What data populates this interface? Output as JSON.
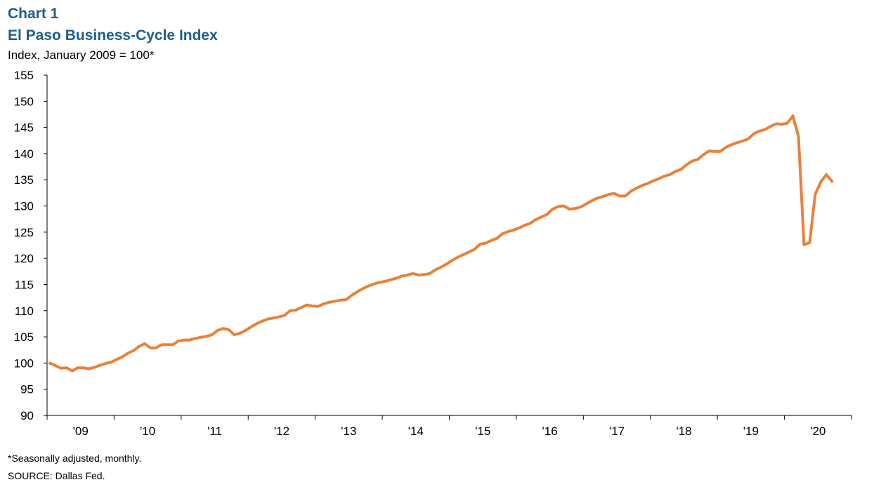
{
  "header": {
    "chart_number": "Chart 1",
    "title": "El Paso Business-Cycle Index",
    "subtitle": "Index, January 2009 = 100*"
  },
  "footer": {
    "note": "*Seasonally adjusted, monthly.",
    "source": "SOURCE:  Dallas Fed."
  },
  "colors": {
    "line": "#e8823a",
    "axis": "#000000"
  },
  "chart_data": {
    "type": "line",
    "title": "El Paso Business-Cycle Index",
    "xlabel": "",
    "ylabel": "Index, January 2009 = 100*",
    "ylim": [
      90,
      155
    ],
    "yticks": [
      90,
      95,
      100,
      105,
      110,
      115,
      120,
      125,
      130,
      135,
      140,
      145,
      150,
      155
    ],
    "xticks": [
      "'09",
      "'10",
      "'11",
      "'12",
      "'13",
      "'14",
      "'15",
      "'16",
      "'17",
      "'18",
      "'19",
      "'20"
    ],
    "grid": false,
    "legend": "none",
    "x_start": "2009-01",
    "x_end": "2020-09",
    "series": [
      {
        "values": [
          100.0,
          99.5,
          99.0,
          99.1,
          98.5,
          99.1,
          99.1,
          98.9,
          99.2,
          99.6,
          99.9,
          100.2,
          100.7,
          101.2,
          101.9,
          102.4,
          103.2,
          103.7,
          102.9,
          102.9,
          103.5,
          103.5,
          103.5,
          104.2,
          104.4,
          104.4,
          104.7,
          104.9,
          105.1,
          105.4,
          106.2,
          106.6,
          106.4,
          105.4,
          105.7,
          106.2,
          106.9,
          107.5,
          108.0,
          108.4,
          108.6,
          108.8,
          109.1,
          110.0,
          110.1,
          110.6,
          111.1,
          110.9,
          110.8,
          111.3,
          111.6,
          111.8,
          112.0,
          112.1,
          112.9,
          113.6,
          114.2,
          114.7,
          115.1,
          115.4,
          115.6,
          115.9,
          116.2,
          116.6,
          116.8,
          117.1,
          116.8,
          116.9,
          117.1,
          117.8,
          118.3,
          118.9,
          119.6,
          120.2,
          120.7,
          121.2,
          121.7,
          122.7,
          122.9,
          123.4,
          123.8,
          124.7,
          125.1,
          125.4,
          125.8,
          126.3,
          126.7,
          127.4,
          127.9,
          128.4,
          129.4,
          129.9,
          130.0,
          129.4,
          129.5,
          129.8,
          130.4,
          131.0,
          131.5,
          131.8,
          132.2,
          132.4,
          131.9,
          131.9,
          132.8,
          133.4,
          133.9,
          134.3,
          134.8,
          135.2,
          135.7,
          136.0,
          136.6,
          137.0,
          137.9,
          138.6,
          138.9,
          139.8,
          140.5,
          140.4,
          140.4,
          141.2,
          141.7,
          142.1,
          142.4,
          142.8,
          143.8,
          144.3,
          144.6,
          145.2,
          145.7,
          145.6,
          145.8,
          147.2,
          143.3,
          122.6,
          123.0,
          132.2,
          134.6,
          136.0,
          134.7
        ]
      }
    ]
  }
}
